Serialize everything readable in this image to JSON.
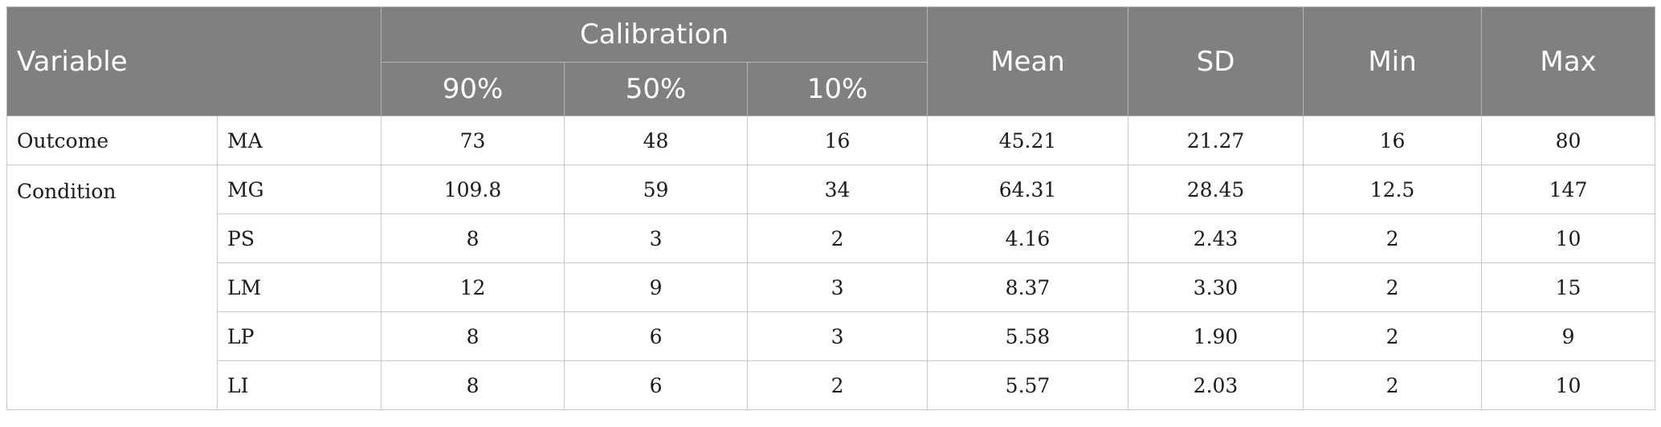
{
  "header": {
    "variable": "Variable",
    "calibration": "Calibration",
    "cal_90": "90%",
    "cal_50": "50%",
    "cal_10": "10%",
    "mean": "Mean",
    "sd": "SD",
    "min": "Min",
    "max": "Max"
  },
  "groups": [
    {
      "label": "Outcome",
      "rows": [
        {
          "name": "MA",
          "p90": "73",
          "p50": "48",
          "p10": "16",
          "mean": "45.21",
          "sd": "21.27",
          "min": "16",
          "max": "80"
        }
      ]
    },
    {
      "label": "Condition",
      "rows": [
        {
          "name": "MG",
          "p90": "109.8",
          "p50": "59",
          "p10": "34",
          "mean": "64.31",
          "sd": "28.45",
          "min": "12.5",
          "max": "147"
        },
        {
          "name": "PS",
          "p90": "8",
          "p50": "3",
          "p10": "2",
          "mean": "4.16",
          "sd": "2.43",
          "min": "2",
          "max": "10"
        },
        {
          "name": "LM",
          "p90": "12",
          "p50": "9",
          "p10": "3",
          "mean": "8.37",
          "sd": "3.30",
          "min": "2",
          "max": "15"
        },
        {
          "name": "LP",
          "p90": "8",
          "p50": "6",
          "p10": "3",
          "mean": "5.58",
          "sd": "1.90",
          "min": "2",
          "max": "9"
        },
        {
          "name": "LI",
          "p90": "8",
          "p50": "6",
          "p10": "2",
          "mean": "5.57",
          "sd": "2.03",
          "min": "2",
          "max": "10"
        }
      ]
    }
  ]
}
